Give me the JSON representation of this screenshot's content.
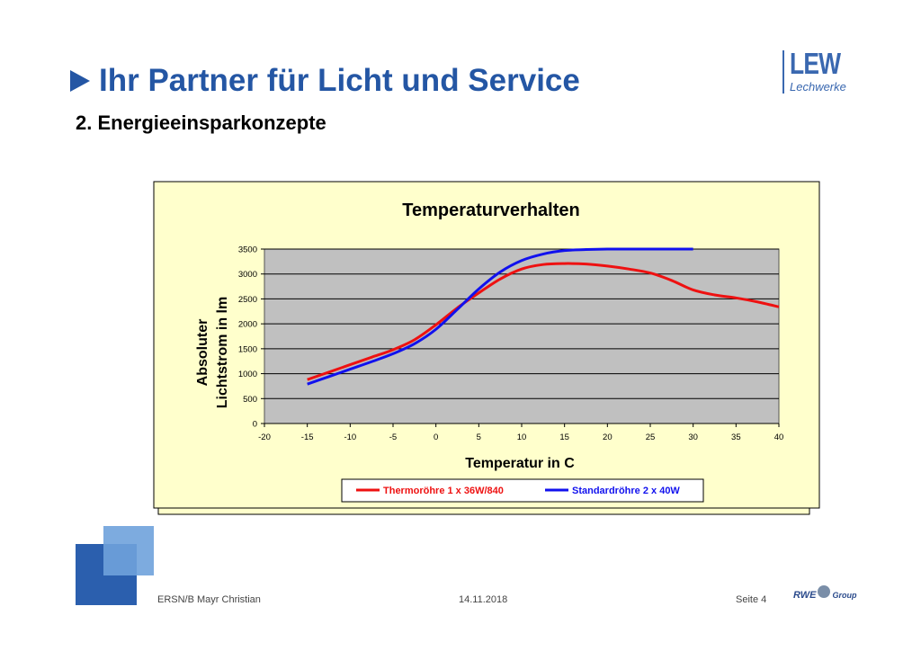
{
  "slide": {
    "title": "Ihr Partner für Licht und Service",
    "subtitle": "2. Energieeinsparkonzepte",
    "title_color": "#2456a4",
    "logo_main": "LEW",
    "logo_sub": "Lechwerke",
    "footer_left": "ERSN/B Mayr Christian",
    "footer_date": "14.11.2018",
    "footer_page": "Seite 4",
    "rwe_text": "RWE",
    "group_text": "Group"
  },
  "chart_data": {
    "type": "line",
    "title": "Temperaturverhalten",
    "xlabel": "Temperatur in C",
    "ylabel_line1": "Absoluter",
    "ylabel_line2": "Lichtstrom  in lm",
    "xlim": [
      -20,
      40
    ],
    "ylim": [
      0,
      3500
    ],
    "xticks": [
      -20,
      -15,
      -10,
      -5,
      0,
      5,
      10,
      15,
      20,
      25,
      30,
      35,
      40
    ],
    "yticks": [
      0,
      500,
      1000,
      1500,
      2000,
      2500,
      3000,
      3500
    ],
    "grid": "horizontal",
    "legend_position": "bottom",
    "plot_background": "#c0c0c0",
    "chart_background": "#ffffcc",
    "series": [
      {
        "name": "Thermoröhre 1 x 36W/840",
        "color": "#ee1111",
        "x": [
          -15,
          -12.5,
          -10,
          -7.5,
          -5,
          -2.5,
          0,
          2.5,
          5,
          7.5,
          10,
          12.5,
          15,
          17.5,
          20,
          22.5,
          25,
          27.5,
          30,
          32.5,
          35,
          37.5,
          40
        ],
        "y": [
          880,
          1030,
          1180,
          1330,
          1480,
          1680,
          1980,
          2320,
          2620,
          2900,
          3100,
          3190,
          3210,
          3200,
          3160,
          3100,
          3020,
          2870,
          2680,
          2580,
          2520,
          2440,
          2340
        ]
      },
      {
        "name": "Standardröhre 2 x 40W",
        "color": "#1111ee",
        "x": [
          -15,
          -12.5,
          -10,
          -7.5,
          -5,
          -2.5,
          0,
          2.5,
          5,
          7.5,
          10,
          12.5,
          15,
          17.5,
          20,
          22.5,
          25,
          27.5,
          30
        ],
        "y": [
          790,
          940,
          1090,
          1240,
          1400,
          1600,
          1890,
          2290,
          2700,
          3040,
          3270,
          3400,
          3470,
          3490,
          3500,
          3500,
          3500,
          3500,
          3500
        ]
      }
    ]
  }
}
